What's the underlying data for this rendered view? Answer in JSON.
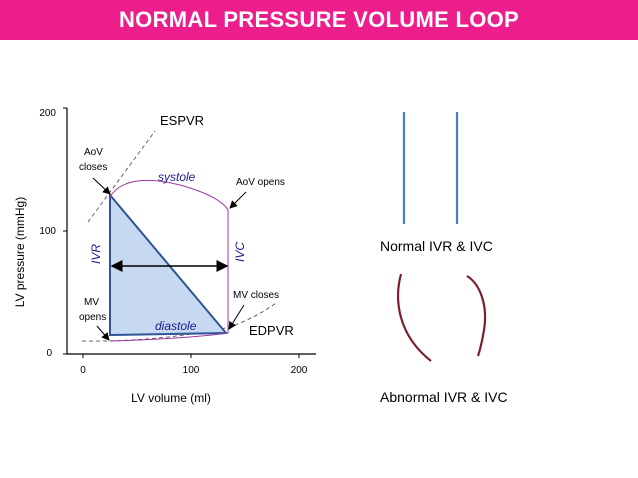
{
  "title": "NORMAL PRESSURE VOLUME LOOP",
  "colors": {
    "banner": "#ec1e8c",
    "loop_fill": "#c6d9f0",
    "loop_stroke": "#2e5597",
    "curve": "#9b3a9b",
    "label_blue": "#1a1a8c",
    "normal_lines": "#4a7ec2",
    "abnormal_curves": "#7b1f2a"
  },
  "axes": {
    "ylabel": "LV pressure (mmHg)",
    "xlabel": "LV  volume (ml)",
    "y_ticks": [
      "0",
      "100",
      "200"
    ],
    "x_ticks": [
      "0",
      "100",
      "200"
    ]
  },
  "labels": {
    "espvr": "ESPVR",
    "edpvr": "EDPVR",
    "aov_closes_1": "AoV",
    "aov_closes_2": "closes",
    "systole": "systole",
    "aov_opens": "AoV opens",
    "ivr": "IVR",
    "ivc": "IVC",
    "mv_closes": "MV closes",
    "mv_opens_1": "MV",
    "mv_opens_2": "opens",
    "diastole": "diastole"
  },
  "examples": {
    "normal": "Normal IVR & IVC",
    "abnormal": "Abnormal IVR & IVC"
  }
}
